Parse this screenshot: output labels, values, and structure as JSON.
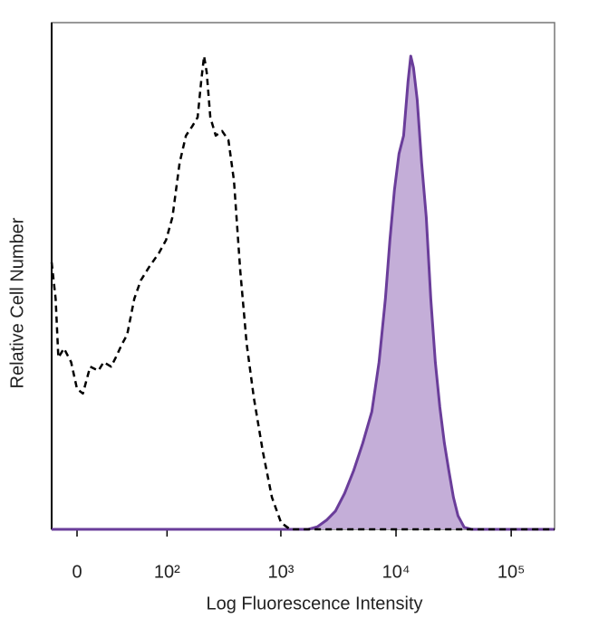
{
  "chart_data": {
    "type": "histogram-overlay",
    "x_label": "Log Fluorescence Intensity",
    "y_label": "Relative Cell Number",
    "xscale": "biexponential",
    "xlim": [
      -18,
      238000
    ],
    "ylim": [
      0,
      100
    ],
    "xticks": [
      {
        "value": 0,
        "label": "0"
      },
      {
        "value": 100,
        "label": "10²"
      },
      {
        "value": 1000,
        "label": "10³"
      },
      {
        "value": 10000,
        "label": "10⁴"
      },
      {
        "value": 100000,
        "label": "10⁵"
      }
    ],
    "series": [
      {
        "color": "#000000",
        "linestyle": "dashed",
        "filled": false,
        "x": [
          -18,
          -15,
          -13,
          -9,
          -4,
          0,
          4,
          9,
          15,
          19,
          25,
          29,
          35,
          40,
          48,
          56,
          68,
          84,
          98,
          112,
          130,
          148,
          168,
          188,
          202,
          214,
          226,
          243,
          271,
          308,
          350,
          391,
          444,
          504,
          583,
          699,
          837,
          1005,
          1204,
          238000
        ],
        "values": [
          52.7,
          45.5,
          33.9,
          35.7,
          33.0,
          27.7,
          26.8,
          32.1,
          31.3,
          33.0,
          32.1,
          33.9,
          36.6,
          38.4,
          45.5,
          49.1,
          51.8,
          54.5,
          57.1,
          61.6,
          72.3,
          77.7,
          79.5,
          81.3,
          88.4,
          93.4,
          90.2,
          81.3,
          77.7,
          78.6,
          76.8,
          68.8,
          50.9,
          36.6,
          25.9,
          15.2,
          6.3,
          1.3,
          0,
          0
        ]
      },
      {
        "color": "#6a3d9a",
        "fill": "#c4aed8",
        "linestyle": "solid",
        "filled": true,
        "x": [
          -18,
          1730,
          2075,
          2490,
          2980,
          3575,
          4290,
          5140,
          6160,
          7120,
          8085,
          8850,
          9690,
          10610,
          11630,
          12720,
          13430,
          14180,
          15260,
          16700,
          18290,
          20030,
          21930,
          24000,
          26280,
          28760,
          31520,
          34510,
          39130,
          45250,
          238000
        ],
        "values": [
          0,
          0,
          0.5,
          1.8,
          3.6,
          7.1,
          11.6,
          17.0,
          23.2,
          33.0,
          45.5,
          57.1,
          67.0,
          74.1,
          77.7,
          88.4,
          93.4,
          91.1,
          84.8,
          72.3,
          61.6,
          45.5,
          33.0,
          24.1,
          17.0,
          11.6,
          6.3,
          2.7,
          0.4,
          0,
          0
        ]
      }
    ]
  }
}
